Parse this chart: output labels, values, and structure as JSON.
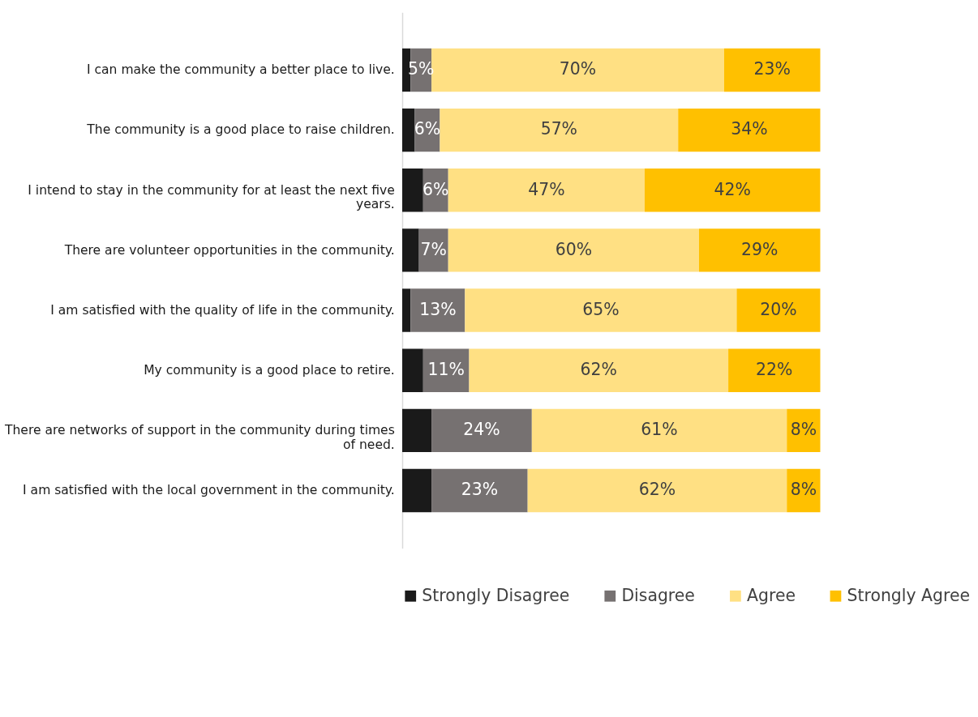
{
  "chart_data": {
    "type": "bar",
    "orientation": "horizontal",
    "stacked": true,
    "categories": [
      "I can make the community a better place to live.",
      "The community is a good place to raise children.",
      "I intend to stay in the community for at least the next five years.",
      "There are volunteer opportunities in the community.",
      "I am satisfied with the quality of life in the community.",
      "My community is a good place to retire.",
      "There are networks of support in the community during times of need.",
      "I am satisfied with the local government in the community."
    ],
    "series": [
      {
        "name": "Strongly Disagree",
        "color": "#1a1a1a",
        "values": [
          2,
          3,
          5,
          4,
          2,
          5,
          7,
          7
        ],
        "value_labels": [
          null,
          null,
          null,
          null,
          null,
          null,
          null,
          null
        ]
      },
      {
        "name": "Disagree",
        "color": "#767171",
        "values": [
          5,
          6,
          6,
          7,
          13,
          11,
          24,
          23
        ],
        "value_labels": [
          "5%",
          "6%",
          "6%",
          "7%",
          "13%",
          "11%",
          "24%",
          "23%"
        ]
      },
      {
        "name": "Agree",
        "color": "#ffe083",
        "values": [
          70,
          57,
          47,
          60,
          65,
          62,
          61,
          62
        ],
        "value_labels": [
          "70%",
          "57%",
          "47%",
          "60%",
          "65%",
          "62%",
          "61%",
          "62%"
        ]
      },
      {
        "name": "Strongly Agree",
        "color": "#ffc000",
        "values": [
          23,
          34,
          42,
          29,
          20,
          22,
          8,
          8
        ],
        "value_labels": [
          "23%",
          "34%",
          "42%",
          "29%",
          "20%",
          "22%",
          "8%",
          "8%"
        ]
      }
    ],
    "xlim": [
      0,
      100
    ],
    "legend": "bottom",
    "tick_labels": "y"
  }
}
